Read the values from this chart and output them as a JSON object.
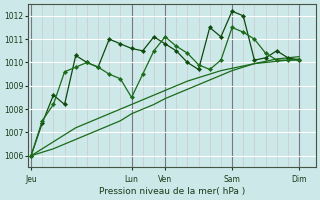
{
  "bg_color": "#cce8e8",
  "grid_color_major": "#aaaaaa",
  "grid_color_minor": "#ccbbbb",
  "line_color": "#1a6b1a",
  "dark_line_color": "#0d4a0d",
  "xlabel": "Pression niveau de la mer( hPa )",
  "ylim": [
    1005.5,
    1012.5
  ],
  "yticks": [
    1006,
    1007,
    1008,
    1009,
    1010,
    1011,
    1012
  ],
  "x_tick_labels": [
    "Jeu",
    "",
    "Lun",
    "Ven",
    "",
    "Sam",
    "",
    "Dim"
  ],
  "x_tick_positions": [
    0,
    4.5,
    9,
    12,
    15,
    18,
    21,
    24
  ],
  "xlim": [
    -0.3,
    25.5
  ],
  "n_points": 25,
  "series_jagged1_x": [
    0,
    1,
    2,
    3,
    4,
    5,
    6,
    7,
    8,
    9,
    10,
    11,
    12,
    13,
    14,
    15,
    16,
    17,
    18,
    19,
    20,
    21,
    22,
    23,
    24
  ],
  "series_jagged1": [
    1006.0,
    1007.4,
    1008.6,
    1008.2,
    1010.3,
    1010.0,
    1009.8,
    1011.0,
    1010.8,
    1010.6,
    1010.5,
    1011.1,
    1010.8,
    1010.5,
    1010.0,
    1009.7,
    1011.5,
    1011.1,
    1012.2,
    1012.0,
    1010.1,
    1010.2,
    1010.5,
    1010.2,
    1010.1
  ],
  "series_jagged2_x": [
    0,
    1,
    2,
    3,
    4,
    5,
    6,
    7,
    8,
    9,
    10,
    11,
    12,
    13,
    14,
    15,
    16,
    17,
    18,
    19,
    20,
    21,
    22,
    23,
    24
  ],
  "series_jagged2": [
    1006.0,
    1007.5,
    1008.2,
    1009.6,
    1009.8,
    1010.0,
    1009.8,
    1009.5,
    1009.3,
    1008.5,
    1009.5,
    1010.5,
    1011.1,
    1010.7,
    1010.4,
    1009.9,
    1009.7,
    1010.1,
    1011.5,
    1011.3,
    1011.0,
    1010.4,
    1010.1,
    1010.1,
    1010.1
  ],
  "series_trend1": [
    1006.0,
    1006.15,
    1006.3,
    1006.5,
    1006.7,
    1006.9,
    1007.1,
    1007.3,
    1007.5,
    1007.8,
    1008.0,
    1008.2,
    1008.45,
    1008.65,
    1008.85,
    1009.05,
    1009.25,
    1009.45,
    1009.65,
    1009.8,
    1009.95,
    1010.05,
    1010.15,
    1010.2,
    1010.25
  ],
  "series_trend2": [
    1006.0,
    1006.3,
    1006.6,
    1006.9,
    1007.2,
    1007.4,
    1007.6,
    1007.8,
    1008.0,
    1008.2,
    1008.4,
    1008.6,
    1008.8,
    1009.0,
    1009.2,
    1009.35,
    1009.5,
    1009.65,
    1009.75,
    1009.85,
    1009.95,
    1010.0,
    1010.05,
    1010.1,
    1010.15
  ]
}
